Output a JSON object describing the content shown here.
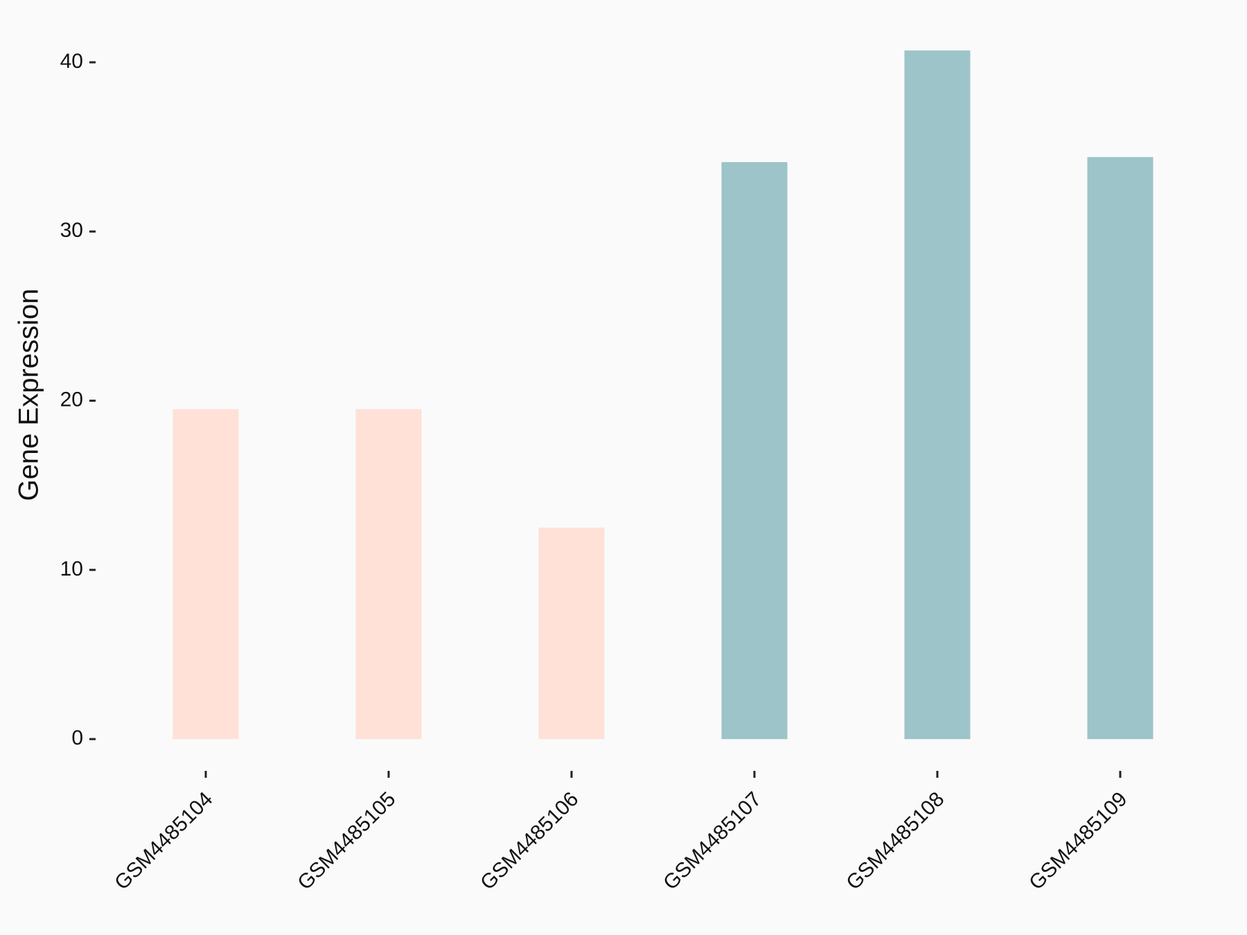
{
  "chart_data": {
    "type": "bar",
    "y_label": "Gene Expression",
    "categories": [
      "GSM4485104",
      "GSM4485105",
      "GSM4485106",
      "GSM4485107",
      "GSM4485108",
      "GSM4485109"
    ],
    "values": [
      19.5,
      19.5,
      12.5,
      34.1,
      40.7,
      34.4
    ],
    "colors": [
      "#ffe1d8",
      "#ffe1d8",
      "#ffe1d8",
      "#9dc4c8",
      "#9dc4c8",
      "#9dc4c8"
    ],
    "ylim": [
      -2,
      42.7
    ],
    "yticks": [
      0,
      10,
      20,
      30,
      40
    ],
    "grid": false
  }
}
